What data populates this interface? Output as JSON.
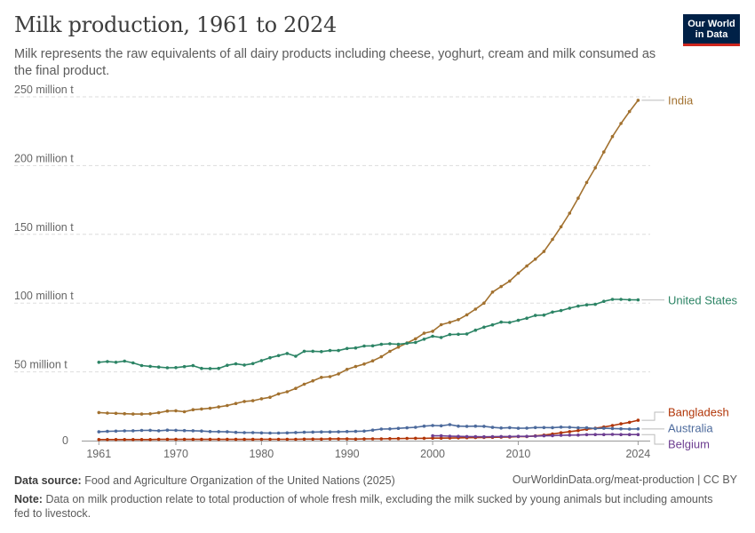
{
  "header": {
    "title": "Milk production, 1961 to 2024",
    "subtitle": "Milk represents the raw equivalents of all dairy products including cheese, yoghurt, cream and milk consumed as the final product.",
    "logo_line1": "Our World",
    "logo_line2": "in Data"
  },
  "footer": {
    "source_label": "Data source:",
    "source_text": "Food and Agriculture Organization of the United Nations (2025)",
    "url_text": "OurWorldinData.org/meat-production | CC BY",
    "note_label": "Note:",
    "note_text": "Data on milk production relate to total production of whole fresh milk, excluding the milk sucked by young animals but including amounts fed to livestock."
  },
  "colors": {
    "India": "#a2712f",
    "United States": "#2c8465",
    "Bangladesh": "#b13507",
    "Australia": "#4c6a9c",
    "Belgium": "#6d3e91",
    "grid": "#dddddd",
    "axis_text": "#666666"
  },
  "chart_data": {
    "type": "line",
    "title": "Milk production, 1961 to 2024",
    "xlim": [
      1959,
      2025
    ],
    "ylim": [
      0,
      250
    ],
    "y_unit": "million t",
    "y_ticks": [
      0,
      50,
      100,
      150,
      200,
      250
    ],
    "y_tick_labels": [
      "0",
      "50 million t",
      "100 million t",
      "150 million t",
      "200 million t",
      "250 million t"
    ],
    "x_ticks": [
      1961,
      1970,
      1980,
      1990,
      2000,
      2010,
      2024
    ],
    "x_tick_labels": [
      "1961",
      "1970",
      "1980",
      "1990",
      "2000",
      "2010",
      "2024"
    ],
    "grid": "horizontal dashed",
    "legend": "line-end labels on right",
    "series": [
      {
        "name": "India",
        "start_year": 1961,
        "values": [
          20.4,
          20.0,
          19.8,
          19.6,
          19.3,
          19.3,
          19.5,
          20.3,
          21.5,
          21.7,
          21.0,
          22.5,
          23.0,
          23.5,
          24.5,
          25.5,
          27.0,
          28.5,
          29.0,
          30.4,
          31.5,
          34.0,
          35.5,
          38.0,
          41.0,
          43.5,
          46.0,
          46.5,
          48.5,
          51.8,
          53.9,
          55.7,
          58.0,
          61.0,
          64.9,
          68.0,
          71.0,
          74.0,
          78.1,
          79.5,
          84.3,
          86.0,
          88.0,
          91.5,
          95.6,
          100.0,
          108.0,
          112.0,
          116.0,
          121.8,
          127.0,
          132.0,
          137.5,
          146.3,
          155.5,
          165.4,
          176.3,
          187.7,
          198.4,
          209.9,
          221.1,
          230.6,
          239.3,
          247.5
        ]
      },
      {
        "name": "United States",
        "start_year": 1961,
        "values": [
          57.0,
          57.5,
          57.0,
          57.8,
          56.5,
          54.6,
          54.0,
          53.5,
          53.0,
          53.1,
          53.8,
          54.5,
          52.5,
          52.4,
          52.5,
          54.8,
          55.8,
          55.0,
          56.0,
          58.2,
          60.3,
          61.8,
          63.4,
          61.4,
          65.0,
          65.0,
          64.7,
          65.5,
          65.5,
          67.0,
          67.4,
          68.8,
          68.9,
          70.0,
          70.4,
          70.0,
          70.8,
          71.4,
          73.8,
          75.9,
          75.0,
          77.1,
          77.3,
          77.6,
          80.3,
          82.5,
          84.2,
          86.2,
          85.9,
          87.5,
          89.0,
          91.0,
          91.3,
          93.5,
          94.6,
          96.3,
          97.8,
          98.7,
          99.1,
          101.3,
          102.7,
          102.7,
          102.4,
          102.3
        ]
      },
      {
        "name": "Bangladesh",
        "start_year": 1961,
        "values": [
          0.8,
          0.8,
          0.8,
          0.8,
          0.8,
          0.8,
          0.8,
          0.9,
          0.9,
          0.9,
          0.9,
          0.9,
          0.9,
          0.9,
          0.9,
          0.9,
          0.9,
          0.9,
          0.9,
          1.0,
          1.0,
          1.0,
          1.0,
          1.0,
          1.1,
          1.1,
          1.1,
          1.2,
          1.2,
          1.2,
          1.1,
          1.2,
          1.3,
          1.3,
          1.4,
          1.5,
          1.6,
          1.7,
          1.7,
          1.8,
          1.8,
          1.9,
          2.0,
          2.1,
          2.2,
          2.3,
          2.4,
          2.5,
          2.6,
          2.9,
          3.0,
          3.4,
          4.0,
          4.8,
          5.7,
          6.5,
          7.3,
          8.3,
          9.0,
          9.9,
          11.0,
          12.2,
          13.3,
          14.8
        ]
      },
      {
        "name": "Australia",
        "start_year": 1961,
        "values": [
          6.4,
          6.7,
          6.9,
          7.1,
          7.2,
          7.4,
          7.5,
          7.2,
          7.6,
          7.5,
          7.3,
          7.2,
          7.0,
          6.6,
          6.5,
          6.4,
          6.0,
          5.8,
          5.8,
          5.6,
          5.5,
          5.5,
          5.6,
          5.9,
          6.1,
          6.2,
          6.3,
          6.3,
          6.4,
          6.6,
          6.7,
          6.9,
          7.6,
          8.4,
          8.5,
          8.9,
          9.3,
          9.7,
          10.5,
          11.0,
          10.8,
          11.6,
          10.5,
          10.4,
          10.5,
          10.4,
          9.6,
          9.2,
          9.4,
          9.0,
          9.1,
          9.5,
          9.5,
          9.4,
          9.8,
          9.7,
          9.3,
          9.3,
          8.8,
          9.0,
          8.8,
          8.6,
          8.4,
          8.5
        ]
      },
      {
        "name": "Belgium",
        "start_year": 2000,
        "values": [
          3.5,
          3.5,
          3.2,
          3.1,
          3.0,
          2.9,
          2.8,
          2.9,
          3.0,
          3.0,
          3.1,
          3.1,
          3.3,
          3.5,
          3.6,
          3.9,
          4.0,
          4.1,
          4.3,
          4.4,
          4.4,
          4.5,
          4.4,
          4.4,
          4.4
        ]
      }
    ]
  }
}
